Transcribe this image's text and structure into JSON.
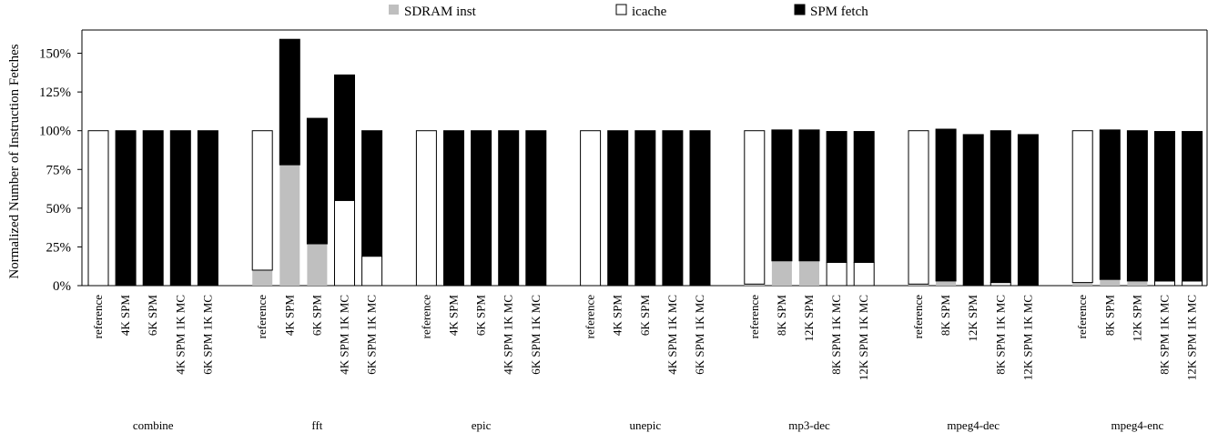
{
  "chart_data": {
    "type": "bar",
    "stacked": true,
    "ylabel": "Normalized Number of Instruction Fetches",
    "xlabel": "",
    "ylim": [
      0,
      165
    ],
    "yticks": [
      0,
      25,
      50,
      75,
      100,
      125,
      150
    ],
    "ytick_labels": [
      "0%",
      "25%",
      "50%",
      "75%",
      "100%",
      "125%",
      "150%"
    ],
    "grid": false,
    "legend": {
      "placement": "top-center",
      "entries": [
        {
          "key": "sdram",
          "label": "SDRAM inst"
        },
        {
          "key": "icache",
          "label": "icache"
        },
        {
          "key": "spm",
          "label": "SPM fetch"
        }
      ]
    },
    "colors": {
      "sdram": "#bfbfbf",
      "icache": "#ffffff",
      "spm": "#000000",
      "outline": "#000000"
    },
    "groups": [
      {
        "name": "combine",
        "bars": [
          {
            "label": "reference",
            "sdram": 0,
            "icache": 100,
            "spm": 0
          },
          {
            "label": "4K SPM",
            "sdram": 0,
            "icache": 0,
            "spm": 100
          },
          {
            "label": "6K SPM",
            "sdram": 0,
            "icache": 0,
            "spm": 100
          },
          {
            "label": "4K SPM 1K MC",
            "sdram": 0,
            "icache": 0,
            "spm": 100
          },
          {
            "label": "6K SPM 1K MC",
            "sdram": 0,
            "icache": 0,
            "spm": 100
          }
        ]
      },
      {
        "name": "fft",
        "bars": [
          {
            "label": "reference",
            "sdram": 10,
            "icache": 90,
            "spm": 0
          },
          {
            "label": "4K SPM",
            "sdram": 78,
            "icache": 0,
            "spm": 81
          },
          {
            "label": "6K SPM",
            "sdram": 27,
            "icache": 0,
            "spm": 81
          },
          {
            "label": "4K SPM 1K MC",
            "sdram": 0,
            "icache": 55,
            "spm": 81
          },
          {
            "label": "6K SPM 1K MC",
            "sdram": 0,
            "icache": 19,
            "spm": 81
          }
        ]
      },
      {
        "name": "epic",
        "bars": [
          {
            "label": "reference",
            "sdram": 0,
            "icache": 100,
            "spm": 0
          },
          {
            "label": "4K SPM",
            "sdram": 0,
            "icache": 0,
            "spm": 100
          },
          {
            "label": "6K SPM",
            "sdram": 0,
            "icache": 0,
            "spm": 100
          },
          {
            "label": "4K SPM 1K MC",
            "sdram": 0,
            "icache": 0,
            "spm": 100
          },
          {
            "label": "6K SPM 1K MC",
            "sdram": 0,
            "icache": 0,
            "spm": 100
          }
        ]
      },
      {
        "name": "unepic",
        "bars": [
          {
            "label": "reference",
            "sdram": 0,
            "icache": 100,
            "spm": 0
          },
          {
            "label": "4K SPM",
            "sdram": 0,
            "icache": 0,
            "spm": 100
          },
          {
            "label": "6K SPM",
            "sdram": 0,
            "icache": 0,
            "spm": 100
          },
          {
            "label": "4K SPM 1K MC",
            "sdram": 0,
            "icache": 0,
            "spm": 100
          },
          {
            "label": "6K SPM 1K MC",
            "sdram": 0,
            "icache": 0,
            "spm": 100
          }
        ]
      },
      {
        "name": "mp3-dec",
        "bars": [
          {
            "label": "reference",
            "sdram": 1,
            "icache": 99,
            "spm": 0
          },
          {
            "label": "8K SPM",
            "sdram": 16,
            "icache": 0,
            "spm": 84.5
          },
          {
            "label": "12K SPM",
            "sdram": 16,
            "icache": 0,
            "spm": 84.5
          },
          {
            "label": "8K SPM 1K MC",
            "sdram": 0,
            "icache": 15,
            "spm": 84.5
          },
          {
            "label": "12K SPM 1K MC",
            "sdram": 0,
            "icache": 15,
            "spm": 84.5
          }
        ]
      },
      {
        "name": "mpeg4-dec",
        "bars": [
          {
            "label": "reference",
            "sdram": 1,
            "icache": 99,
            "spm": 0
          },
          {
            "label": "8K SPM",
            "sdram": 3,
            "icache": 0,
            "spm": 98
          },
          {
            "label": "12K SPM",
            "sdram": 0,
            "icache": 0,
            "spm": 97.5
          },
          {
            "label": "8K SPM 1K MC",
            "sdram": 0,
            "icache": 2,
            "spm": 98
          },
          {
            "label": "12K SPM 1K MC",
            "sdram": 0,
            "icache": 0,
            "spm": 97.5
          }
        ]
      },
      {
        "name": "mpeg4-enc",
        "bars": [
          {
            "label": "reference",
            "sdram": 2,
            "icache": 98,
            "spm": 0
          },
          {
            "label": "8K SPM",
            "sdram": 4,
            "icache": 0,
            "spm": 96.5
          },
          {
            "label": "12K SPM",
            "sdram": 3,
            "icache": 0,
            "spm": 97
          },
          {
            "label": "8K SPM 1K MC",
            "sdram": 0,
            "icache": 3,
            "spm": 96.5
          },
          {
            "label": "12K SPM 1K MC",
            "sdram": 0,
            "icache": 3,
            "spm": 96.5
          }
        ]
      }
    ]
  }
}
